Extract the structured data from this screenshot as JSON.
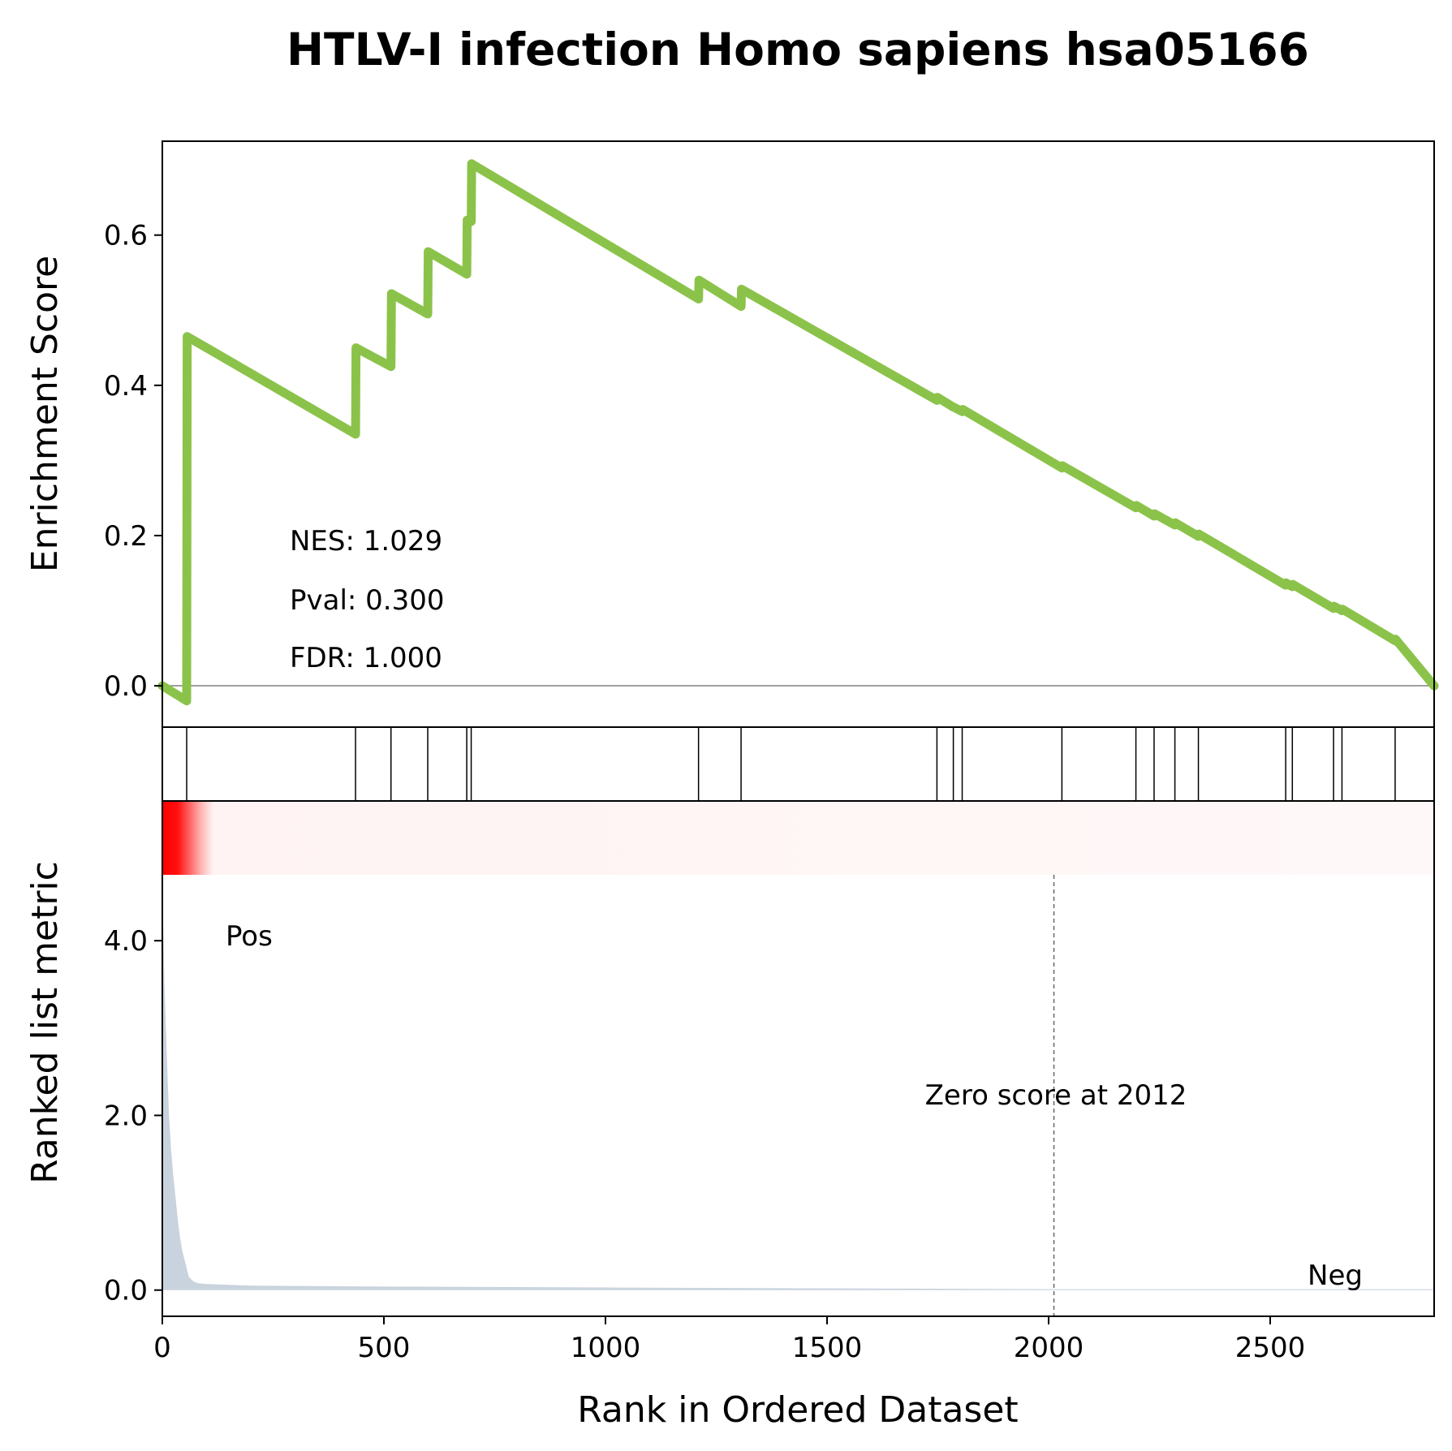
{
  "chart_data": {
    "type": "line",
    "title": "HTLV-I infection Homo sapiens hsa05166",
    "xlabel": "Rank in Ordered Dataset",
    "xlim": [
      0,
      2870
    ],
    "x_ticks": [
      0,
      500,
      1000,
      1500,
      2000,
      2500
    ],
    "es_panel": {
      "ylabel": "Enrichment Score",
      "ylim": [
        -0.055,
        0.725
      ],
      "y_ticks": [
        0.0,
        0.2,
        0.4,
        0.6
      ],
      "y_tick_labels": [
        "0.0",
        "0.2",
        "0.4",
        "0.6"
      ],
      "line_color": "#8bc34a",
      "series": [
        {
          "x": [
            0,
            55,
            56,
            436,
            437,
            516,
            517,
            599,
            600,
            687,
            688,
            697,
            698,
            1210,
            1211,
            1306,
            1307,
            1748,
            1749,
            1785,
            1786,
            1805,
            1806,
            2030,
            2031,
            2197,
            2198,
            2238,
            2239,
            2285,
            2286,
            2338,
            2339,
            2535,
            2536,
            2550,
            2551,
            2643,
            2644,
            2662,
            2663,
            2782,
            2783,
            2870
          ],
          "y": [
            0.0,
            -0.02,
            0.465,
            0.335,
            0.45,
            0.425,
            0.522,
            0.495,
            0.578,
            0.548,
            0.62,
            0.618,
            0.695,
            0.515,
            0.54,
            0.505,
            0.528,
            0.38,
            0.384,
            0.371,
            0.371,
            0.365,
            0.368,
            0.29,
            0.293,
            0.237,
            0.24,
            0.226,
            0.229,
            0.214,
            0.217,
            0.199,
            0.202,
            0.134,
            0.137,
            0.132,
            0.135,
            0.103,
            0.106,
            0.1,
            0.102,
            0.06,
            0.062,
            0.0
          ]
        }
      ],
      "annotations": [
        "NES: 1.029",
        "Pval: 0.300",
        "FDR: 1.000"
      ]
    },
    "hits_panel": {
      "hit_positions": [
        55,
        436,
        516,
        599,
        687,
        697,
        1210,
        1306,
        1748,
        1785,
        1805,
        2030,
        2197,
        2238,
        2285,
        2338,
        2535,
        2550,
        2643,
        2662,
        2782
      ]
    },
    "heatmap_band": {
      "colors": [
        "#ff0000",
        "#fff5f5"
      ]
    },
    "rank_panel": {
      "ylabel": "Ranked list metric",
      "ylim": [
        -0.3,
        5.6
      ],
      "y_ticks": [
        0.0,
        2.0,
        4.0
      ],
      "y_tick_labels": [
        "0.0",
        "2.0",
        "4.0"
      ],
      "fill_color": "#c9d3dd",
      "zero_score_at": 2012,
      "zero_label": "Zero score at 2012",
      "pos_label": "Pos",
      "neg_label": "Neg",
      "pos_color": "#ff0000",
      "neg_color": "#0000ff",
      "series": [
        {
          "x": [
            0,
            2,
            5,
            10,
            15,
            20,
            25,
            30,
            35,
            40,
            45,
            50,
            55,
            60,
            70,
            80,
            100,
            150,
            200,
            500,
            1000,
            1500,
            2012,
            2500,
            2870
          ],
          "y": [
            4.9,
            4.2,
            3.5,
            2.7,
            2.0,
            1.6,
            1.3,
            1.05,
            0.8,
            0.6,
            0.45,
            0.35,
            0.25,
            0.15,
            0.1,
            0.08,
            0.07,
            0.06,
            0.05,
            0.04,
            0.03,
            0.02,
            0.01,
            0.01,
            0.01
          ]
        }
      ]
    }
  }
}
